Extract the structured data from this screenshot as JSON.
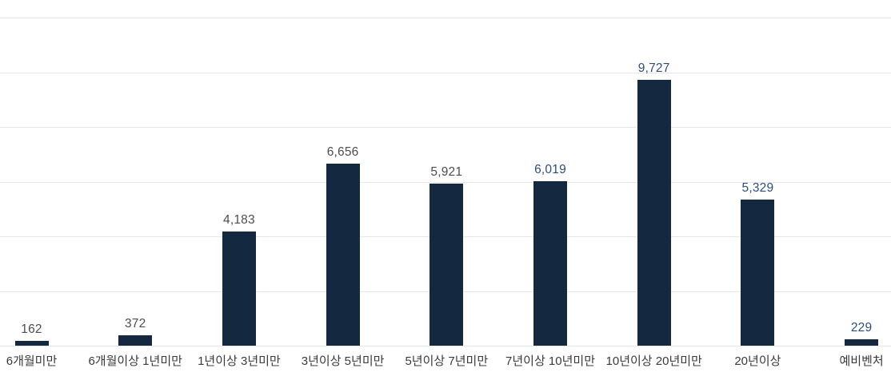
{
  "chart_data": {
    "type": "bar",
    "title": "",
    "xlabel": "",
    "ylabel": "",
    "categories": [
      "6개월미만",
      "6개월이상 1년미만",
      "1년이상 3년미만",
      "3년이상 5년미만",
      "5년이상 7년미만",
      "7년이상 10년미만",
      "10년이상 20년미만",
      "20년이상",
      "예비벤처"
    ],
    "values": [
      162,
      372,
      4183,
      6656,
      5921,
      6019,
      9727,
      5329,
      229
    ],
    "value_labels": [
      "162",
      "372",
      "4,183",
      "6,656",
      "5,921",
      "6,019",
      "9,727",
      "5,329",
      "229"
    ],
    "value_label_colors": [
      "#4d4d4d",
      "#4d4d4d",
      "#4d4d4d",
      "#4d4d4d",
      "#4d4d4d",
      "#2e4d7d",
      "#2e4d7d",
      "#2e4d7d",
      "#2e4d7d"
    ],
    "ylim": [
      0,
      12000
    ],
    "gridline_step": 2000,
    "grid": true,
    "legend": "none",
    "colors": {
      "bar": "#14293f",
      "gridline": "#e7e7e7",
      "axis_line": "#e7e7e7",
      "category_label": "#3a3a3a"
    }
  }
}
